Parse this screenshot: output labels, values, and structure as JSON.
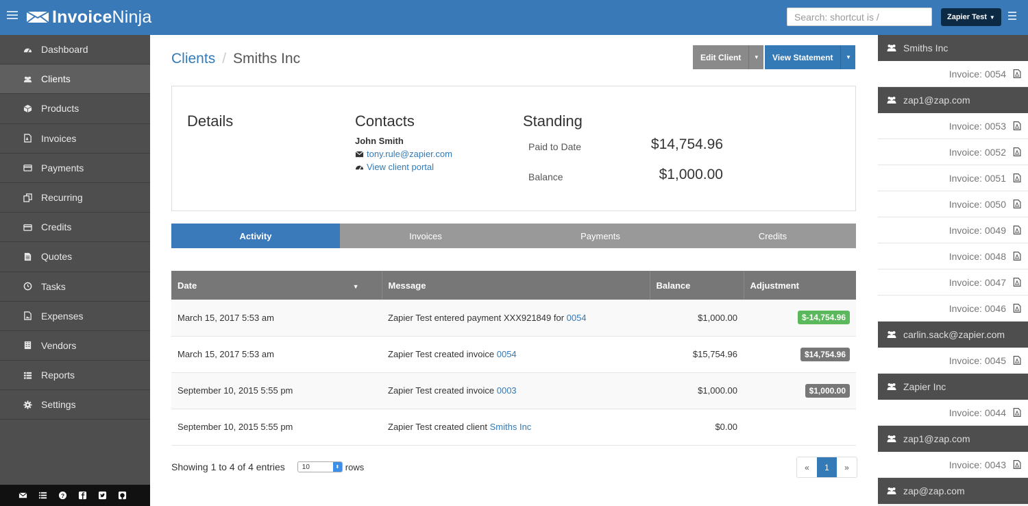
{
  "app": {
    "brand_bold": "Invoice",
    "brand_thin": "Ninja",
    "search_placeholder": "Search: shortcut is /",
    "user_menu": "Zapier Test"
  },
  "sidebar": {
    "items": [
      {
        "label": "Dashboard",
        "icon": "dashboard-icon"
      },
      {
        "label": "Clients",
        "icon": "users-icon",
        "active": true
      },
      {
        "label": "Products",
        "icon": "cube-icon"
      },
      {
        "label": "Invoices",
        "icon": "file-pdf-icon"
      },
      {
        "label": "Payments",
        "icon": "credit-card-icon"
      },
      {
        "label": "Recurring",
        "icon": "copy-icon"
      },
      {
        "label": "Credits",
        "icon": "credit-card-icon"
      },
      {
        "label": "Quotes",
        "icon": "file-text-icon"
      },
      {
        "label": "Tasks",
        "icon": "clock-icon"
      },
      {
        "label": "Expenses",
        "icon": "image-icon"
      },
      {
        "label": "Vendors",
        "icon": "building-icon"
      },
      {
        "label": "Reports",
        "icon": "list-icon"
      },
      {
        "label": "Settings",
        "icon": "gear-icon"
      }
    ],
    "footer_icons": [
      "mail-icon",
      "list-icon",
      "help-icon",
      "facebook-icon",
      "twitter-icon",
      "github-icon"
    ]
  },
  "breadcrumb": {
    "parent": "Clients",
    "current": "Smiths Inc"
  },
  "toolbar": {
    "edit_label": "Edit Client",
    "view_label": "View Statement"
  },
  "panel": {
    "details_title": "Details",
    "contacts_title": "Contacts",
    "contact_name": "John Smith",
    "contact_email": "tony.rule@zapier.com",
    "portal_link": "View client portal",
    "standing_title": "Standing",
    "paid_label": "Paid to Date",
    "paid_value": "$14,754.96",
    "balance_label": "Balance",
    "balance_value": "$1,000.00"
  },
  "tabs": [
    "Activity",
    "Invoices",
    "Payments",
    "Credits"
  ],
  "table": {
    "headers": [
      "Date",
      "Message",
      "Balance",
      "Adjustment"
    ],
    "rows": [
      {
        "date": "March 15, 2017 5:53 am",
        "msg_pre": "Zapier Test entered payment XXX921849 for ",
        "msg_link": "0054",
        "balance": "$1,000.00",
        "adjustment": "$-14,754.96",
        "badge_color": "#5cb85c"
      },
      {
        "date": "March 15, 2017 5:53 am",
        "msg_pre": "Zapier Test created invoice ",
        "msg_link": "0054",
        "balance": "$15,754.96",
        "adjustment": "$14,754.96",
        "badge_color": "#777777"
      },
      {
        "date": "September 10, 2015 5:55 pm",
        "msg_pre": "Zapier Test created invoice ",
        "msg_link": "0003",
        "balance": "$1,000.00",
        "adjustment": "$1,000.00",
        "badge_color": "#777777"
      },
      {
        "date": "September 10, 2015 5:55 pm",
        "msg_pre": "Zapier Test created client ",
        "msg_link": "Smiths Inc",
        "balance": "$0.00",
        "adjustment": ""
      }
    ]
  },
  "footer": {
    "showing": "Showing 1 to 4 of 4 entries",
    "rows_value": "10",
    "rows_label": "rows",
    "prev": "«",
    "page": "1",
    "next": "»"
  },
  "recent": [
    {
      "type": "client",
      "label": "Smiths Inc"
    },
    {
      "type": "invoice",
      "label": "Invoice: 0054"
    },
    {
      "type": "client",
      "label": "zap1@zap.com"
    },
    {
      "type": "invoice",
      "label": "Invoice: 0053"
    },
    {
      "type": "invoice",
      "label": "Invoice: 0052"
    },
    {
      "type": "invoice",
      "label": "Invoice: 0051"
    },
    {
      "type": "invoice",
      "label": "Invoice: 0050"
    },
    {
      "type": "invoice",
      "label": "Invoice: 0049"
    },
    {
      "type": "invoice",
      "label": "Invoice: 0048"
    },
    {
      "type": "invoice",
      "label": "Invoice: 0047"
    },
    {
      "type": "invoice",
      "label": "Invoice: 0046"
    },
    {
      "type": "client",
      "label": "carlin.sack@zapier.com"
    },
    {
      "type": "invoice",
      "label": "Invoice: 0045"
    },
    {
      "type": "client",
      "label": "Zapier Inc"
    },
    {
      "type": "invoice",
      "label": "Invoice: 0044"
    },
    {
      "type": "client",
      "label": "zap1@zap.com"
    },
    {
      "type": "invoice",
      "label": "Invoice: 0043"
    },
    {
      "type": "client",
      "label": "zap@zap.com"
    }
  ],
  "colors": {
    "brand": "#3a79b8",
    "link": "#337ab7",
    "sidebar": "#4e4e4e",
    "success": "#5cb85c"
  }
}
